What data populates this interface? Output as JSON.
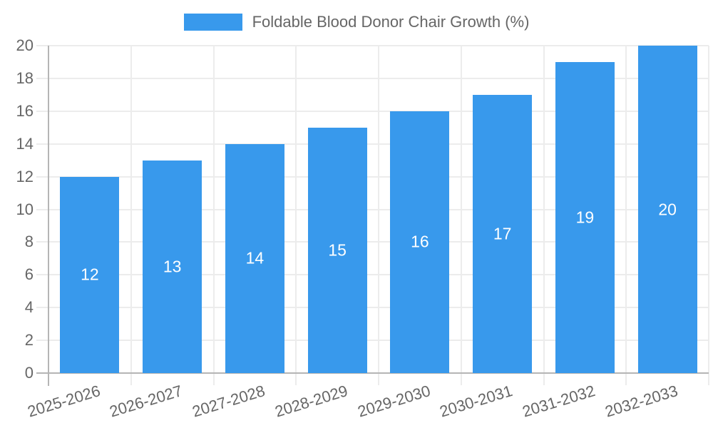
{
  "legend": {
    "label": "Foldable Blood Donor Chair Growth (%)"
  },
  "colors": {
    "bar": "#3899ec",
    "grid": "#ececec",
    "axis": "#b5b5b5",
    "tick_text": "#666666",
    "bar_label_text": "#ffffff",
    "background": "#ffffff"
  },
  "chart_data": {
    "type": "bar",
    "title": "Foldable Blood Donor Chair Growth (%)",
    "categories": [
      "2025-2026",
      "2026-2027",
      "2027-2028",
      "2028-2029",
      "2029-2030",
      "2030-2031",
      "2031-2032",
      "2032-2033"
    ],
    "values": [
      12,
      13,
      14,
      15,
      16,
      17,
      19,
      20
    ],
    "xlabel": "",
    "ylabel": "",
    "ylim": [
      0,
      20
    ],
    "yticks": [
      0,
      2,
      4,
      6,
      8,
      10,
      12,
      14,
      16,
      18,
      20
    ],
    "grid": true,
    "legend_position": "top",
    "bar_value_labels": "inside-center-white",
    "x_tick_rotation_deg": -17
  }
}
